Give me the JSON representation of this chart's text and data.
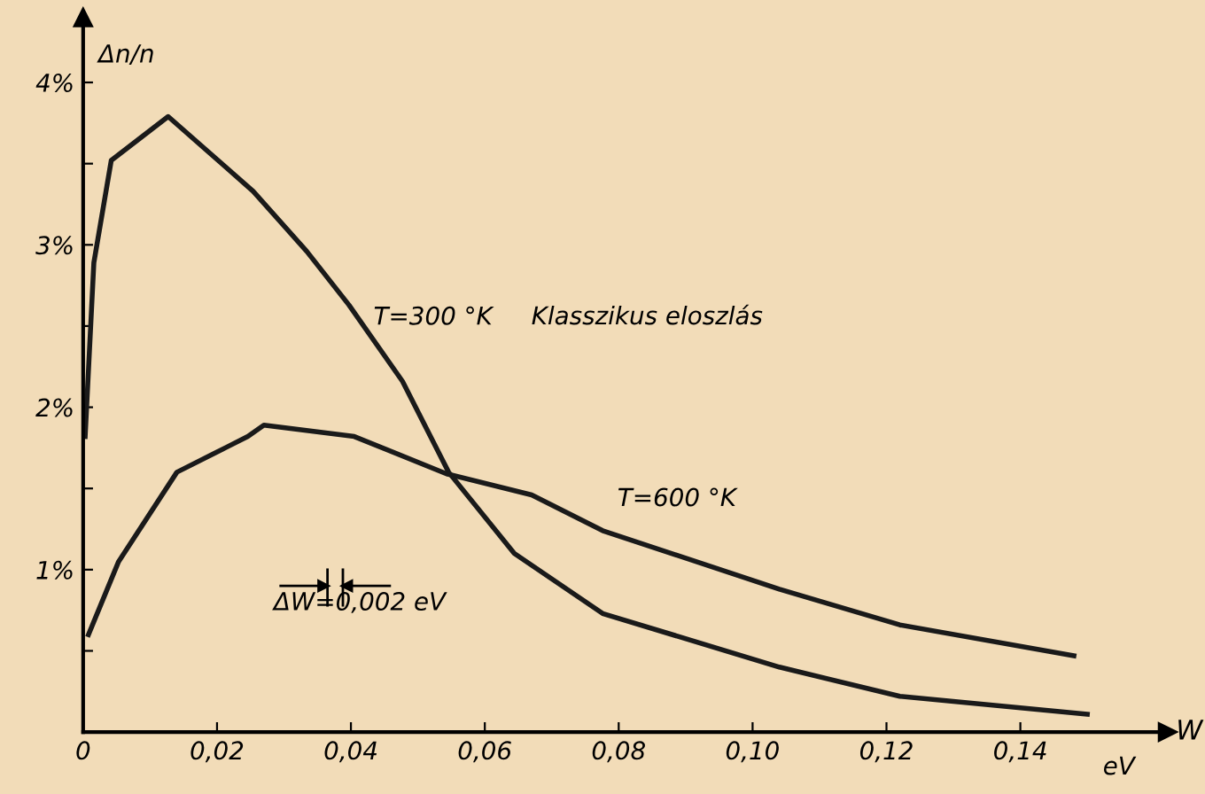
{
  "chart_data": {
    "type": "line",
    "xlabel": "W",
    "ylabel": "Δn/n",
    "x": [
      0.0003,
      0.0016,
      0.0042,
      0.0127,
      0.0185,
      0.0254,
      0.0334,
      0.0397,
      0.0477,
      0.0546,
      0.0644,
      0.0776,
      0.104,
      0.122,
      0.15
    ],
    "series": [
      {
        "name": "T=300 °K",
        "color": "#1a1a1a",
        "values": [
          1.82,
          2.89,
          3.52,
          3.79,
          3.58,
          3.33,
          2.96,
          2.63,
          2.16,
          1.6,
          1.1,
          0.73,
          0.4,
          0.22,
          0.11
        ]
      },
      {
        "name": "T=600 °K",
        "color": "#1a1a1a",
        "x": [
          0.0008,
          0.0053,
          0.014,
          0.0246,
          0.027,
          0.0405,
          0.0543,
          0.067,
          0.0776,
          0.104,
          0.122,
          0.148
        ],
        "values": [
          0.6,
          1.05,
          1.6,
          1.82,
          1.89,
          1.82,
          1.59,
          1.46,
          1.24,
          0.88,
          0.66,
          0.47
        ]
      }
    ],
    "xlim": [
      0,
      0.162
    ],
    "ylim": [
      0,
      4.4
    ],
    "xticks": [
      {
        "value": 0,
        "label": "0"
      },
      {
        "value": 0.02,
        "label": "0,02"
      },
      {
        "value": 0.04,
        "label": "0,04"
      },
      {
        "value": 0.06,
        "label": "0,06"
      },
      {
        "value": 0.08,
        "label": "0,08"
      },
      {
        "value": 0.1,
        "label": "0,10"
      },
      {
        "value": 0.12,
        "label": "0,12"
      },
      {
        "value": 0.14,
        "label": "0,14"
      }
    ],
    "yticks": [
      {
        "value": 0.5,
        "label": null
      },
      {
        "value": 1,
        "label": "1%"
      },
      {
        "value": 1.5,
        "label": null
      },
      {
        "value": 2,
        "label": "2%"
      },
      {
        "value": 2.5,
        "label": null
      },
      {
        "value": 3,
        "label": "3%"
      },
      {
        "value": 3.5,
        "label": null
      },
      {
        "value": 4,
        "label": "4%"
      }
    ],
    "annotations": [
      "Klasszikus eloszlás",
      "ΔW=0,002 eV",
      "eV"
    ],
    "grid": false,
    "legend": false,
    "marker": "none",
    "line_style": "solid"
  }
}
